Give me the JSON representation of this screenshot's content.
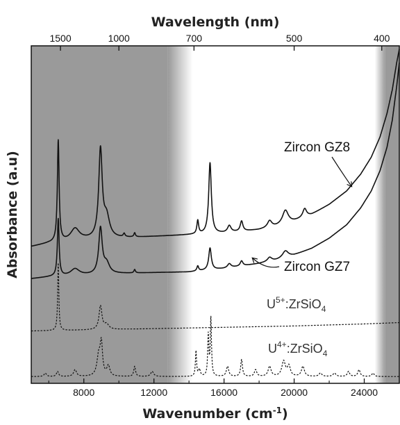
{
  "chart_data": {
    "type": "line",
    "title": "",
    "xlabel": "Wavenumber (cm-1)",
    "xlabel_text": "Wavenumber (cm",
    "xlabel_sup": "-1",
    "xlabel_close": ")",
    "top_xlabel": "Wavelength (nm)",
    "ylabel": "Absorbance (a.u)",
    "xlim": [
      5000,
      26000
    ],
    "ylim": [
      0,
      1
    ],
    "grid": false,
    "legend": "none",
    "x_ticks": [
      {
        "value": 8000,
        "label": "8000"
      },
      {
        "value": 12000,
        "label": "12000"
      },
      {
        "value": 16000,
        "label": "16000"
      },
      {
        "value": 20000,
        "label": "20000"
      },
      {
        "value": 24000,
        "label": "24000"
      }
    ],
    "top_ticks": [
      {
        "value": 1500,
        "label": "1500"
      },
      {
        "value": 1000,
        "label": "1000"
      },
      {
        "value": 700,
        "label": "700"
      },
      {
        "value": 500,
        "label": "500"
      },
      {
        "value": 400,
        "label": "400"
      }
    ],
    "shaded_regions": [
      {
        "from": 5000,
        "to": 12800,
        "fade_to": 14200,
        "color": "#9a9a9a"
      },
      {
        "from": 25200,
        "to": 26000,
        "fade_from": 24600,
        "color": "#9a9a9a"
      }
    ],
    "series": [
      {
        "name": "Zircon GZ8",
        "style": "solid",
        "color": "#111111",
        "baseline": [
          [
            5000,
            0.405
          ],
          [
            6000,
            0.415
          ],
          [
            8000,
            0.425
          ],
          [
            10000,
            0.43
          ],
          [
            12000,
            0.435
          ],
          [
            14000,
            0.44
          ],
          [
            16000,
            0.445
          ],
          [
            18000,
            0.455
          ],
          [
            19000,
            0.465
          ],
          [
            20000,
            0.48
          ],
          [
            21000,
            0.5
          ],
          [
            22000,
            0.53
          ],
          [
            23000,
            0.57
          ],
          [
            23800,
            0.62
          ],
          [
            24400,
            0.67
          ],
          [
            24900,
            0.73
          ],
          [
            25300,
            0.8
          ],
          [
            25600,
            0.87
          ],
          [
            25850,
            0.95
          ],
          [
            26000,
            0.99
          ]
        ],
        "peaks": [
          [
            6540,
            0.3,
            60
          ],
          [
            7500,
            0.035,
            300
          ],
          [
            8950,
            0.26,
            120
          ],
          [
            9300,
            0.06,
            200
          ],
          [
            10300,
            0.01,
            60
          ],
          [
            10900,
            0.012,
            50
          ],
          [
            14500,
            0.04,
            60
          ],
          [
            15200,
            0.21,
            90
          ],
          [
            16300,
            0.02,
            120
          ],
          [
            17000,
            0.03,
            90
          ],
          [
            18600,
            0.02,
            150
          ],
          [
            19500,
            0.04,
            200
          ],
          [
            20600,
            0.025,
            130
          ]
        ]
      },
      {
        "name": "Zircon GZ7",
        "style": "solid",
        "color": "#111111",
        "baseline": [
          [
            5000,
            0.31
          ],
          [
            6000,
            0.315
          ],
          [
            8000,
            0.32
          ],
          [
            10000,
            0.325
          ],
          [
            12000,
            0.328
          ],
          [
            14000,
            0.33
          ],
          [
            16000,
            0.34
          ],
          [
            18000,
            0.355
          ],
          [
            19000,
            0.365
          ],
          [
            20000,
            0.38
          ],
          [
            21000,
            0.4
          ],
          [
            22000,
            0.43
          ],
          [
            23000,
            0.47
          ],
          [
            23800,
            0.52
          ],
          [
            24400,
            0.57
          ],
          [
            24900,
            0.63
          ],
          [
            25300,
            0.7
          ],
          [
            25600,
            0.78
          ],
          [
            25850,
            0.88
          ],
          [
            26000,
            0.95
          ]
        ],
        "peaks": [
          [
            6540,
            0.17,
            60
          ],
          [
            7500,
            0.02,
            300
          ],
          [
            8950,
            0.135,
            120
          ],
          [
            9300,
            0.03,
            200
          ],
          [
            10900,
            0.01,
            50
          ],
          [
            14500,
            0.015,
            60
          ],
          [
            15200,
            0.065,
            90
          ],
          [
            16300,
            0.012,
            120
          ],
          [
            17000,
            0.015,
            90
          ],
          [
            18600,
            0.012,
            150
          ],
          [
            19500,
            0.02,
            200
          ]
        ]
      },
      {
        "name": "U5+:ZrSiO4",
        "style": "dashed",
        "color": "#111111",
        "baseline": [
          [
            5000,
            0.155
          ],
          [
            8000,
            0.158
          ],
          [
            12000,
            0.162
          ],
          [
            16000,
            0.166
          ],
          [
            20000,
            0.17
          ],
          [
            24000,
            0.176
          ],
          [
            26000,
            0.18
          ]
        ],
        "peaks": [
          [
            6540,
            0.2,
            40
          ],
          [
            8950,
            0.07,
            100
          ],
          [
            9300,
            0.015,
            150
          ]
        ]
      },
      {
        "name": "U4+:ZrSiO4",
        "style": "dashed",
        "color": "#111111",
        "baseline": [
          [
            5000,
            0.02
          ],
          [
            26000,
            0.02
          ]
        ],
        "peaks": [
          [
            5800,
            0.01,
            80
          ],
          [
            6500,
            0.015,
            70
          ],
          [
            7500,
            0.02,
            100
          ],
          [
            8850,
            0.06,
            120
          ],
          [
            9000,
            0.09,
            80
          ],
          [
            9400,
            0.03,
            100
          ],
          [
            10900,
            0.03,
            60
          ],
          [
            11900,
            0.015,
            100
          ],
          [
            14400,
            0.075,
            40
          ],
          [
            14600,
            0.02,
            60
          ],
          [
            15100,
            0.12,
            40
          ],
          [
            15250,
            0.17,
            40
          ],
          [
            16200,
            0.03,
            80
          ],
          [
            17000,
            0.05,
            60
          ],
          [
            17800,
            0.02,
            80
          ],
          [
            18600,
            0.03,
            100
          ],
          [
            19400,
            0.045,
            120
          ],
          [
            19700,
            0.03,
            100
          ],
          [
            20500,
            0.03,
            100
          ],
          [
            21500,
            0.01,
            100
          ],
          [
            22300,
            0.01,
            100
          ],
          [
            23100,
            0.015,
            80
          ],
          [
            23700,
            0.02,
            80
          ],
          [
            24500,
            0.01,
            80
          ]
        ]
      }
    ],
    "annotations": [
      {
        "series": "Zircon GZ8",
        "text": "Zircon GZ8",
        "prefix": "",
        "sup": "",
        "suffix": ""
      },
      {
        "series": "Zircon GZ7",
        "text": "Zircon GZ7",
        "prefix": "",
        "sup": "",
        "suffix": ""
      },
      {
        "series": "U5+:ZrSiO4",
        "text": "U5+:ZrSiO4",
        "prefix": "U",
        "sup": "5+",
        "mid": ":ZrSiO",
        "sub": "4"
      },
      {
        "series": "U4+:ZrSiO4",
        "text": "U4+:ZrSiO4",
        "prefix": "U",
        "sup": "4+",
        "mid": ":ZrSiO",
        "sub": "4"
      }
    ]
  }
}
